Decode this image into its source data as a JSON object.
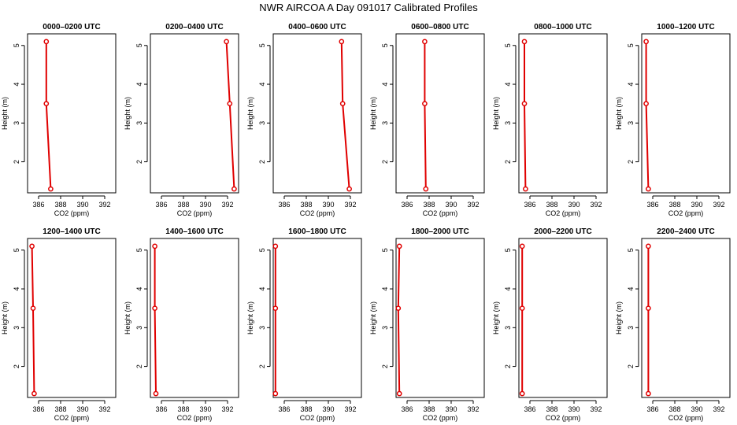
{
  "title": "NWR AIRCOA A  Day 091017  Calibrated Profiles",
  "chart_data": {
    "type": "line",
    "layout": "2 rows x 6 columns",
    "xlabel": "CO2 (ppm)",
    "ylabel": "Height (m)",
    "xlim": [
      385,
      393
    ],
    "ylim": [
      1.2,
      5.3
    ],
    "xticks": [
      386,
      388,
      390,
      392
    ],
    "yticks": [
      2,
      3,
      4,
      5
    ],
    "heights": [
      5.1,
      3.5,
      1.3
    ],
    "line_color": "#e00000",
    "marker_color": "#e00000",
    "panels": [
      {
        "title": "0000–0200 UTC",
        "co2": [
          386.7,
          386.7,
          387.1
        ]
      },
      {
        "title": "0200–0400 UTC",
        "co2": [
          391.9,
          392.2,
          392.6
        ]
      },
      {
        "title": "0400–0600 UTC",
        "co2": [
          391.2,
          391.3,
          391.9
        ]
      },
      {
        "title": "0600–0800 UTC",
        "co2": [
          387.6,
          387.6,
          387.7
        ]
      },
      {
        "title": "0800–1000 UTC",
        "co2": [
          385.5,
          385.5,
          385.6
        ]
      },
      {
        "title": "1000–1200 UTC",
        "co2": [
          385.4,
          385.4,
          385.6
        ]
      },
      {
        "title": "1200–1400 UTC",
        "co2": [
          385.4,
          385.5,
          385.6
        ]
      },
      {
        "title": "1400–1600 UTC",
        "co2": [
          385.4,
          385.4,
          385.5
        ]
      },
      {
        "title": "1600–1800 UTC",
        "co2": [
          385.2,
          385.2,
          385.2
        ]
      },
      {
        "title": "1800–2000 UTC",
        "co2": [
          385.3,
          385.2,
          385.3
        ]
      },
      {
        "title": "2000–2200 UTC",
        "co2": [
          385.3,
          385.3,
          385.3
        ]
      },
      {
        "title": "2200–2400 UTC",
        "co2": [
          385.6,
          385.6,
          385.6
        ]
      }
    ]
  }
}
